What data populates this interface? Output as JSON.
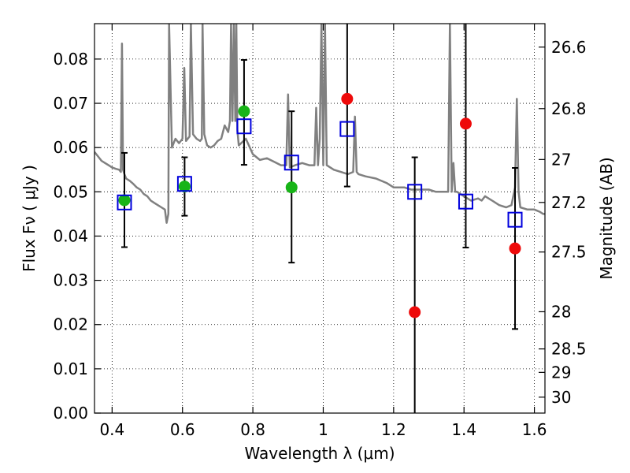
{
  "chart_data": {
    "type": "scatter",
    "title": "",
    "xlabel": "Wavelength  λ (μm)",
    "ylabel": "Flux  Fν  ( μJy )",
    "y2label": "Magnitude (AB)",
    "xlim": [
      0.35,
      1.63
    ],
    "ylim": [
      0.0,
      0.088
    ],
    "grid": true,
    "x_ticks": [
      "0.4",
      "0.6",
      "0.8",
      "1",
      "1.2",
      "1.4",
      "1.6"
    ],
    "x_tick_values": [
      0.4,
      0.6,
      0.8,
      1.0,
      1.2,
      1.4,
      1.6
    ],
    "y_ticks": [
      "0.00",
      "0.01",
      "0.02",
      "0.03",
      "0.04",
      "0.05",
      "0.06",
      "0.07",
      "0.08"
    ],
    "y_tick_values": [
      0.0,
      0.01,
      0.02,
      0.03,
      0.04,
      0.05,
      0.06,
      0.07,
      0.08
    ],
    "y2_ticks": [
      {
        "label": "26.6",
        "flux": 0.0827
      },
      {
        "label": "26.8",
        "flux": 0.0688
      },
      {
        "label": "27",
        "flux": 0.0573
      },
      {
        "label": "27.2",
        "flux": 0.0476
      },
      {
        "label": "27.5",
        "flux": 0.0364
      },
      {
        "label": "28",
        "flux": 0.0229
      },
      {
        "label": "28.5",
        "flux": 0.0145
      },
      {
        "label": "29",
        "flux": 0.0092
      },
      {
        "label": "30",
        "flux": 0.0036
      }
    ],
    "series": [
      {
        "type": "errorbar",
        "color": "#000000",
        "points": [
          {
            "x": 0.435,
            "low": 0.0375,
            "high": 0.0588
          },
          {
            "x": 0.606,
            "low": 0.0446,
            "high": 0.0578
          },
          {
            "x": 0.775,
            "low": 0.0561,
            "high": 0.0798
          },
          {
            "x": 0.91,
            "low": 0.034,
            "high": 0.0682
          },
          {
            "x": 1.068,
            "low": 0.0512,
            "high": 0.088
          },
          {
            "x": 1.26,
            "low": 0.0,
            "high": 0.0578
          },
          {
            "x": 1.405,
            "low": 0.0374,
            "high": 0.088
          },
          {
            "x": 1.545,
            "low": 0.019,
            "high": 0.0554
          }
        ]
      },
      {
        "type": "scatter",
        "marker": "circle",
        "color": "#18b418",
        "points": [
          {
            "x": 0.435,
            "y": 0.0481
          },
          {
            "x": 0.606,
            "y": 0.0512
          },
          {
            "x": 0.775,
            "y": 0.0682
          },
          {
            "x": 0.91,
            "y": 0.051
          }
        ]
      },
      {
        "type": "scatter",
        "marker": "circle",
        "color": "#ee0a0a",
        "points": [
          {
            "x": 1.068,
            "y": 0.071
          },
          {
            "x": 1.26,
            "y": 0.0228
          },
          {
            "x": 1.405,
            "y": 0.0654
          },
          {
            "x": 1.545,
            "y": 0.0372
          }
        ]
      },
      {
        "type": "scatter",
        "marker": "open-square",
        "color": "#0000dd",
        "points": [
          {
            "x": 0.435,
            "y": 0.0476
          },
          {
            "x": 0.606,
            "y": 0.0518
          },
          {
            "x": 0.775,
            "y": 0.0648
          },
          {
            "x": 0.91,
            "y": 0.0566
          },
          {
            "x": 1.068,
            "y": 0.0642
          },
          {
            "x": 1.26,
            "y": 0.05
          },
          {
            "x": 1.405,
            "y": 0.0478
          },
          {
            "x": 1.545,
            "y": 0.0437
          }
        ]
      },
      {
        "type": "line",
        "color": "#808080",
        "x": [
          0.35,
          0.36,
          0.37,
          0.38,
          0.39,
          0.4,
          0.41,
          0.42,
          0.425,
          0.428,
          0.431,
          0.435,
          0.44,
          0.45,
          0.46,
          0.47,
          0.48,
          0.49,
          0.5,
          0.51,
          0.52,
          0.53,
          0.54,
          0.55,
          0.555,
          0.56,
          0.562,
          0.57,
          0.575,
          0.58,
          0.59,
          0.6,
          0.605,
          0.61,
          0.62,
          0.624,
          0.63,
          0.64,
          0.65,
          0.655,
          0.657,
          0.662,
          0.67,
          0.68,
          0.69,
          0.7,
          0.71,
          0.72,
          0.73,
          0.735,
          0.738,
          0.742,
          0.746,
          0.75,
          0.753,
          0.756,
          0.76,
          0.78,
          0.8,
          0.82,
          0.84,
          0.86,
          0.88,
          0.895,
          0.9,
          0.905,
          0.92,
          0.94,
          0.96,
          0.975,
          0.98,
          0.985,
          0.99,
          0.995,
          1.0,
          1.005,
          1.01,
          1.03,
          1.05,
          1.07,
          1.085,
          1.09,
          1.095,
          1.1,
          1.12,
          1.15,
          1.18,
          1.2,
          1.23,
          1.25,
          1.28,
          1.3,
          1.32,
          1.34,
          1.355,
          1.36,
          1.365,
          1.37,
          1.375,
          1.38,
          1.4,
          1.42,
          1.44,
          1.45,
          1.46,
          1.48,
          1.5,
          1.52,
          1.535,
          1.545,
          1.55,
          1.555,
          1.56,
          1.58,
          1.6,
          1.615,
          1.625,
          1.63
        ],
        "y": [
          0.059,
          0.058,
          0.057,
          0.0565,
          0.056,
          0.0555,
          0.0552,
          0.055,
          0.0545,
          0.0835,
          0.055,
          0.054,
          0.053,
          0.0525,
          0.0518,
          0.051,
          0.0505,
          0.0495,
          0.049,
          0.048,
          0.0475,
          0.047,
          0.0465,
          0.046,
          0.043,
          0.045,
          0.088,
          0.06,
          0.061,
          0.062,
          0.061,
          0.062,
          0.078,
          0.0615,
          0.0625,
          0.088,
          0.063,
          0.062,
          0.0615,
          0.062,
          0.088,
          0.063,
          0.0605,
          0.06,
          0.0605,
          0.0615,
          0.062,
          0.065,
          0.0635,
          0.066,
          0.088,
          0.066,
          0.088,
          0.066,
          0.088,
          0.064,
          0.0605,
          0.062,
          0.0585,
          0.0572,
          0.0576,
          0.0568,
          0.056,
          0.056,
          0.072,
          0.0555,
          0.056,
          0.0565,
          0.056,
          0.056,
          0.069,
          0.056,
          0.062,
          0.088,
          0.056,
          0.088,
          0.056,
          0.055,
          0.0545,
          0.054,
          0.0545,
          0.067,
          0.0545,
          0.054,
          0.0535,
          0.053,
          0.052,
          0.051,
          0.051,
          0.0505,
          0.0505,
          0.0505,
          0.05,
          0.05,
          0.05,
          0.088,
          0.05,
          0.0565,
          0.05,
          0.05,
          0.049,
          0.048,
          0.0485,
          0.048,
          0.049,
          0.048,
          0.047,
          0.0465,
          0.047,
          0.051,
          0.071,
          0.05,
          0.0465,
          0.046,
          0.046,
          0.0455,
          0.045,
          0.045
        ]
      }
    ]
  }
}
